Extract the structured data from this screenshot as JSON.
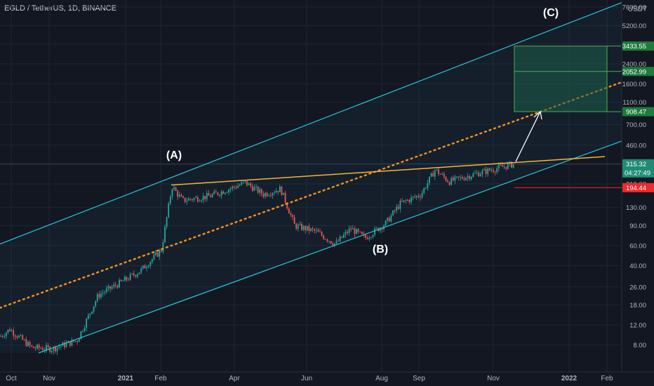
{
  "header": {
    "symbol_title": "EGLD / TetherUS, 1D, BINANCE",
    "currency": "USDT"
  },
  "colors": {
    "background": "#131722",
    "grid": "#1e2433",
    "up": "#26a69a",
    "down": "#ef5350",
    "channel": "#26c6da",
    "resistance": "#f5b43c",
    "midline": "#f7931a",
    "target_fill": "#1d5c4a",
    "target_border": "#4caf50",
    "price_tag": "#1e8c74",
    "stop_tag": "#ef2a2a"
  },
  "chart_data": {
    "type": "candlestick",
    "y_scale": "log",
    "ylim": [
      6.8,
      7800
    ],
    "y_ticks": [
      "7600.00",
      "5200.00",
      "3600.00",
      "2400.00",
      "1600.00",
      "1100.00",
      "700.00",
      "460.00",
      "310.00",
      "210.00",
      "130.00",
      "90.00",
      "60.00",
      "40.00",
      "26.00",
      "18.00",
      "12.00",
      "8.00"
    ],
    "x_ticks": [
      "Oct",
      "Nov",
      "2021",
      "Feb",
      "Apr",
      "Jun",
      "Aug",
      "Sep",
      "Nov",
      "2022",
      "Feb"
    ],
    "price_path": [
      [
        "Oct",
        9.5
      ],
      [
        "Oct",
        11
      ],
      [
        "Nov",
        7.6
      ],
      [
        "Nov",
        7.4
      ],
      [
        "Nov",
        8.8
      ],
      [
        "2021",
        22
      ],
      [
        "2021",
        28
      ],
      [
        "2021",
        36
      ],
      [
        "Feb",
        55
      ],
      [
        "Feb",
        200
      ],
      [
        "Feb",
        150
      ],
      [
        "Apr",
        165
      ],
      [
        "Apr",
        215
      ],
      [
        "Apr",
        170
      ],
      [
        "Apr",
        190
      ],
      [
        "Jun",
        90
      ],
      [
        "Jun",
        80
      ],
      [
        "Jun",
        62
      ],
      [
        "Jun",
        85
      ],
      [
        "Aug",
        70
      ],
      [
        "Aug",
        95
      ],
      [
        "Aug",
        140
      ],
      [
        "Sep",
        170
      ],
      [
        "Sep",
        280
      ],
      [
        "Sep",
        220
      ],
      [
        "Nov",
        260
      ],
      [
        "Nov",
        290
      ],
      [
        "Nov",
        315.32
      ]
    ],
    "price_labels": {
      "take_profit_3": "3433.55",
      "take_profit_2": "2052.99",
      "take_profit_1": "908.47",
      "current_price": "315.32",
      "countdown": "04:27:49",
      "stop": "194.44"
    },
    "target_zone": {
      "low": 908.47,
      "mid": 2052.99,
      "high": 3433.55
    },
    "stop_level": 194.44,
    "annotations": [
      "(A)",
      "(B)",
      "(C)"
    ]
  }
}
